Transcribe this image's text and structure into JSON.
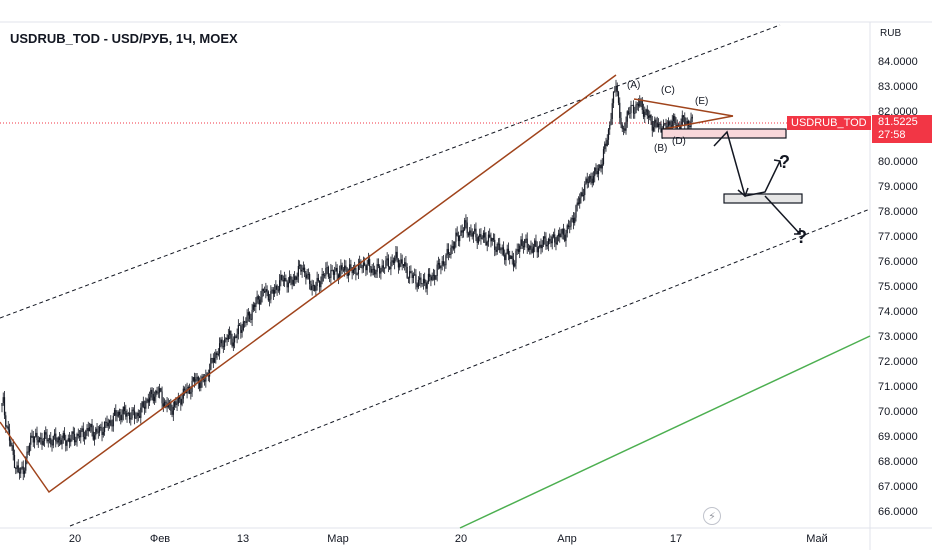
{
  "header": {
    "symbol_title": "USDRUB_TOD - USD/РУБ, 1Ч, MOEX"
  },
  "price_axis": {
    "unit": "RUB",
    "ticks": [
      "84.0000",
      "83.0000",
      "82.0000",
      "81.0000",
      "80.0000",
      "79.0000",
      "78.0000",
      "77.0000",
      "76.0000",
      "75.0000",
      "74.0000",
      "73.0000",
      "72.0000",
      "71.0000",
      "70.0000",
      "69.0000",
      "68.0000",
      "67.0000",
      "66.0000"
    ]
  },
  "time_axis": {
    "ticks": [
      "20",
      "Фев",
      "13",
      "Мар",
      "20",
      "Апр",
      "17",
      "Май"
    ]
  },
  "last_price": {
    "symbol_tag": "USDRUB_TOD",
    "value": "81.5225",
    "countdown": "27:58",
    "color": "#f23645"
  },
  "wave_labels": [
    "(A)",
    "(B)",
    "(C)",
    "(D)",
    "(E)"
  ],
  "question_marks": [
    "?",
    "?"
  ],
  "colors": {
    "candle": "#131722",
    "trendline": "#a0441c",
    "support_line": "#4caf50",
    "channel": "#131722",
    "zone_upper": "#f8d7da",
    "zone_lower": "#e6e6e6"
  },
  "chart_data": {
    "type": "candlestick",
    "title": "USDRUB_TOD - USD/РУБ, 1Ч, MOEX",
    "ylabel": "RUB",
    "ylim": [
      65.6,
      85.1
    ],
    "x_ticks": [
      "20",
      "Фев",
      "13",
      "Мар",
      "20",
      "Апр",
      "17",
      "Май"
    ],
    "y_ticks": [
      84,
      83,
      82,
      81,
      80,
      79,
      78,
      77,
      76,
      75,
      74,
      73,
      72,
      71,
      70,
      69,
      68,
      67,
      66
    ],
    "close_series": [
      [
        0,
        70.2
      ],
      [
        1,
        70.3
      ],
      [
        2,
        69.9
      ],
      [
        4,
        69.4
      ],
      [
        7,
        68.6
      ],
      [
        10,
        68.0
      ],
      [
        13,
        67.5
      ],
      [
        15,
        67.6
      ],
      [
        17,
        67.7
      ],
      [
        19,
        68.0
      ],
      [
        21,
        68.4
      ],
      [
        24,
        69.1
      ],
      [
        28,
        68.8
      ],
      [
        32,
        68.9
      ],
      [
        36,
        68.9
      ],
      [
        40,
        68.8
      ],
      [
        45,
        68.9
      ],
      [
        50,
        68.8
      ],
      [
        55,
        68.9
      ],
      [
        60,
        69.0
      ],
      [
        65,
        69.1
      ],
      [
        70,
        69.3
      ],
      [
        74,
        69.1
      ],
      [
        78,
        69.2
      ],
      [
        82,
        69.4
      ],
      [
        86,
        69.5
      ],
      [
        90,
        69.8
      ],
      [
        95,
        69.9
      ],
      [
        100,
        69.9
      ],
      [
        105,
        69.8
      ],
      [
        110,
        69.9
      ],
      [
        115,
        70.4
      ],
      [
        120,
        70.6
      ],
      [
        125,
        70.8
      ],
      [
        130,
        70.3
      ],
      [
        135,
        70.1
      ],
      [
        140,
        70.3
      ],
      [
        145,
        70.7
      ],
      [
        150,
        70.9
      ],
      [
        155,
        71.3
      ],
      [
        160,
        71.1
      ],
      [
        165,
        71.6
      ],
      [
        170,
        72.2
      ],
      [
        175,
        72.6
      ],
      [
        180,
        73.0
      ],
      [
        185,
        72.8
      ],
      [
        190,
        73.3
      ],
      [
        195,
        73.6
      ],
      [
        200,
        74.0
      ],
      [
        205,
        74.5
      ],
      [
        210,
        74.8
      ],
      [
        215,
        74.6
      ],
      [
        220,
        75.0
      ],
      [
        225,
        75.3
      ],
      [
        230,
        75.1
      ],
      [
        235,
        75.4
      ],
      [
        240,
        75.8
      ],
      [
        245,
        75.2
      ],
      [
        250,
        74.9
      ],
      [
        255,
        75.3
      ],
      [
        260,
        75.6
      ],
      [
        265,
        75.5
      ],
      [
        270,
        75.6
      ],
      [
        275,
        75.7
      ],
      [
        280,
        75.6
      ],
      [
        285,
        75.7
      ],
      [
        290,
        75.9
      ],
      [
        295,
        75.7
      ],
      [
        300,
        75.6
      ],
      [
        305,
        75.8
      ],
      [
        310,
        75.9
      ],
      [
        315,
        76.1
      ],
      [
        320,
        75.9
      ],
      [
        325,
        75.5
      ],
      [
        330,
        75.3
      ],
      [
        335,
        75.1
      ],
      [
        340,
        75.2
      ],
      [
        345,
        75.4
      ],
      [
        350,
        75.8
      ],
      [
        355,
        76.1
      ],
      [
        360,
        76.6
      ],
      [
        365,
        77.0
      ],
      [
        370,
        77.4
      ],
      [
        375,
        77.1
      ],
      [
        380,
        77.0
      ],
      [
        385,
        76.9
      ],
      [
        390,
        76.9
      ],
      [
        395,
        76.6
      ],
      [
        400,
        76.4
      ],
      [
        405,
        76.2
      ],
      [
        410,
        76.0
      ],
      [
        415,
        76.8
      ],
      [
        420,
        76.6
      ],
      [
        425,
        76.5
      ],
      [
        430,
        76.6
      ],
      [
        435,
        76.8
      ],
      [
        440,
        76.8
      ],
      [
        445,
        77.0
      ],
      [
        450,
        77.1
      ],
      [
        455,
        77.5
      ],
      [
        460,
        78.2
      ],
      [
        465,
        78.9
      ],
      [
        470,
        79.3
      ],
      [
        475,
        79.5
      ],
      [
        480,
        80.0
      ],
      [
        485,
        81.2
      ],
      [
        489,
        82.5
      ],
      [
        491,
        83.2
      ],
      [
        493,
        82.3
      ],
      [
        496,
        81.0
      ],
      [
        500,
        81.9
      ],
      [
        505,
        82.1
      ],
      [
        510,
        82.3
      ],
      [
        515,
        81.9
      ],
      [
        520,
        81.5
      ],
      [
        525,
        81.4
      ],
      [
        530,
        81.3
      ],
      [
        535,
        81.6
      ],
      [
        540,
        81.4
      ],
      [
        545,
        81.6
      ],
      [
        550,
        81.5
      ],
      [
        553,
        81.52
      ]
    ],
    "annotations": {
      "wave_labels": [
        "(A)",
        "(B)",
        "(C)",
        "(D)",
        "(E)"
      ],
      "zones": [
        {
          "name": "upper-zone",
          "y_top": 81.2,
          "y_bottom": 80.9
        },
        {
          "name": "lower-zone",
          "y_top": 78.7,
          "y_bottom": 78.35
        }
      ],
      "trendline": [
        [
          0.0,
          70.0
        ],
        [
          5.5,
          67.4
        ],
        [
          47,
          83.5
        ]
      ]
    }
  }
}
